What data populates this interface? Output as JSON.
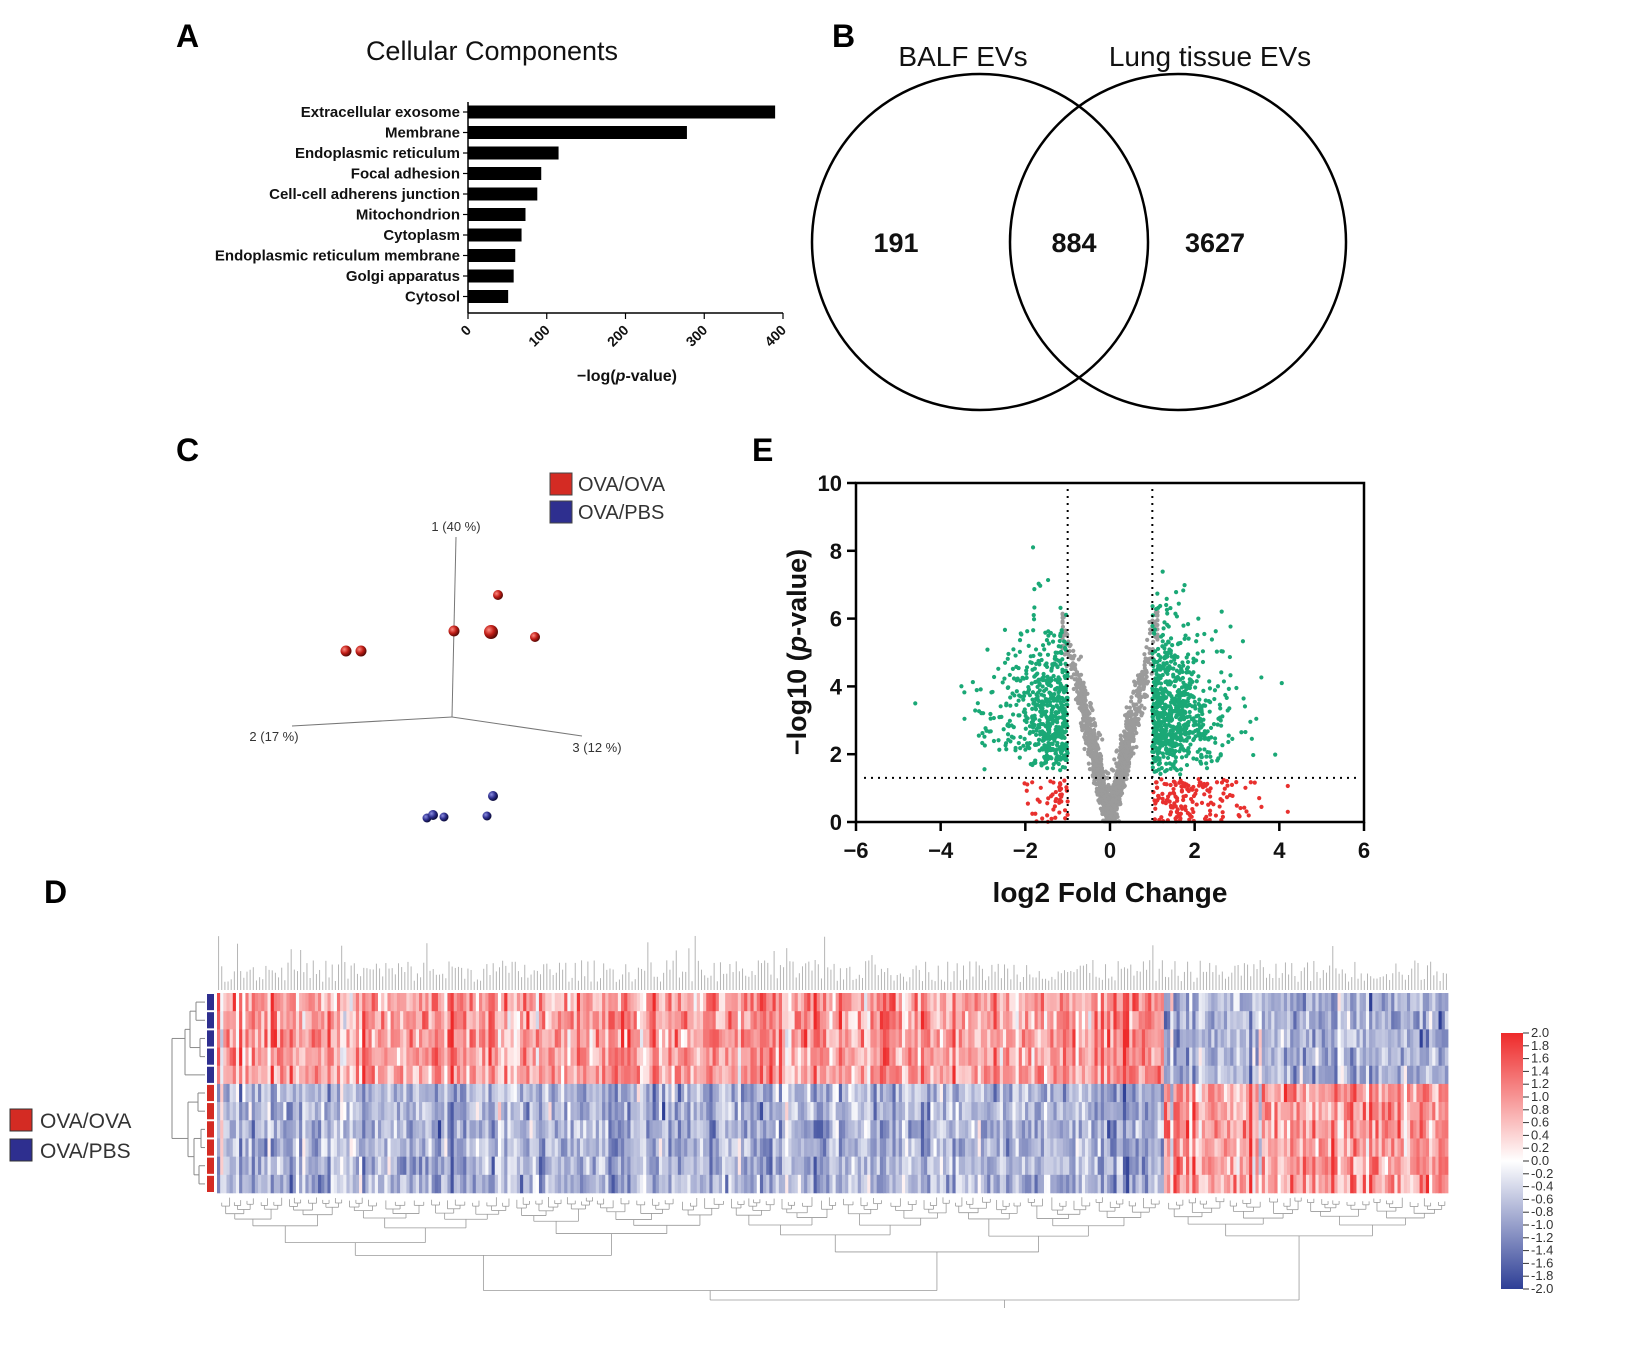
{
  "panels": {
    "A": "A",
    "B": "B",
    "C": "C",
    "D": "D",
    "E": "E"
  },
  "chart_data": [
    {
      "panel": "A",
      "type": "bar",
      "orientation": "horizontal",
      "title": "Cellular Components",
      "xlabel": "−log(p-value)",
      "xlabel_prefix": "−log(",
      "xlabel_italic": "p",
      "xlabel_suffix": "-value)",
      "xlim": [
        0,
        400
      ],
      "xticks": [
        "0",
        "100",
        "200",
        "300",
        "400"
      ],
      "categories": [
        "Extracellular exosome",
        "Membrane",
        "Endoplasmic reticulum",
        "Focal adhesion",
        "Cell-cell adherens junction",
        "Mitochondrion",
        "Cytoplasm",
        "Endoplasmic reticulum membrane",
        "Golgi apparatus",
        "Cytosol"
      ],
      "values": [
        390,
        278,
        115,
        93,
        88,
        73,
        68,
        60,
        58,
        51
      ],
      "bar_color": "#000000"
    },
    {
      "panel": "B",
      "type": "venn",
      "sets": [
        "BALF EVs",
        "Lung tissue EVs"
      ],
      "counts": {
        "only_left": "191",
        "both": "884",
        "only_right": "3627"
      }
    },
    {
      "panel": "C",
      "type": "scatter3d",
      "axes": [
        "1 (40 %)",
        "2 (17 %)",
        "3 (12 %)"
      ],
      "legend": [
        {
          "label": "OVA/OVA",
          "color": "#d42b23"
        },
        {
          "label": "OVA/PBS",
          "color": "#2e2f8f"
        }
      ],
      "groups": [
        {
          "name": "OVA/OVA",
          "n_points": 6
        },
        {
          "name": "OVA/PBS",
          "n_points": 5
        }
      ]
    },
    {
      "panel": "D",
      "type": "heatmap",
      "legend": [
        {
          "label": "OVA/OVA",
          "color": "#d42b23"
        },
        {
          "label": "OVA/PBS",
          "color": "#2e2f8f"
        }
      ],
      "row_groups": [
        "OVA/PBS",
        "OVA/PBS",
        "OVA/PBS",
        "OVA/PBS",
        "OVA/PBS",
        "OVA/OVA",
        "OVA/OVA",
        "OVA/OVA",
        "OVA/OVA",
        "OVA/OVA",
        "OVA/OVA"
      ],
      "column_blocks": [
        {
          "name": "up in OVA/PBS",
          "n_columns": 300,
          "top_rows_sign": 1
        },
        {
          "name": "down in OVA/PBS",
          "n_columns": 90,
          "top_rows_sign": -1
        }
      ],
      "colorbar": {
        "min": -2.0,
        "max": 2.0,
        "low_color": "#2e3f96",
        "mid_color": "#ffffff",
        "high_color": "#ee2a2a",
        "ticks": [
          "2.0",
          "1.8",
          "1.6",
          "1.4",
          "1.2",
          "1.0",
          "0.8",
          "0.6",
          "0.4",
          "0.2",
          "0.0",
          "-0.2",
          "-0.4",
          "-0.6",
          "-0.8",
          "-1.0",
          "-1.2",
          "-1.4",
          "-1.6",
          "-1.8",
          "-2.0"
        ]
      }
    },
    {
      "panel": "E",
      "type": "scatter",
      "subtype": "volcano",
      "xlabel": "log2 Fold Change",
      "ylabel": "−log10 (p-value)",
      "ylabel_prefix": "−log10 (",
      "ylabel_italic": "p",
      "ylabel_suffix": "-value)",
      "xlim": [
        -6,
        6
      ],
      "ylim": [
        0,
        10
      ],
      "xticks": [
        "−6",
        "−4",
        "−2",
        "0",
        "2",
        "4",
        "6"
      ],
      "yticks": [
        "0",
        "2",
        "4",
        "6",
        "8",
        "10"
      ],
      "fc_thresholds": [
        -1,
        1
      ],
      "p_threshold": 1.3,
      "series": [
        {
          "name": "significant",
          "color": "#1aa876",
          "n_points": 1350
        },
        {
          "name": "not significant",
          "color": "#9b9b9b",
          "n_points": 1600
        },
        {
          "name": "fold change only",
          "color": "#e8302e",
          "n_points": 200
        }
      ]
    }
  ]
}
